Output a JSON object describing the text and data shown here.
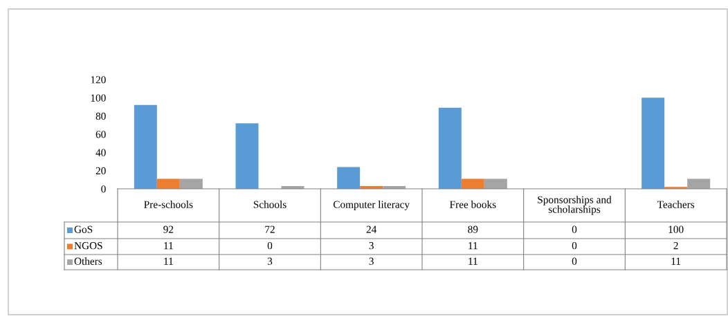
{
  "chart_data": {
    "type": "bar",
    "categories": [
      "Pre-schools",
      "Schools",
      "Computer literacy",
      "Free books",
      "Sponsorships and scholarships",
      "Teachers"
    ],
    "series": [
      {
        "name": "GoS",
        "color": "#5b9bd5",
        "values": [
          92,
          72,
          24,
          89,
          0,
          100
        ]
      },
      {
        "name": "NGOS",
        "color": "#ed7d31",
        "values": [
          11,
          0,
          3,
          11,
          0,
          2
        ]
      },
      {
        "name": "Others",
        "color": "#a5a5a5",
        "values": [
          11,
          3,
          3,
          11,
          0,
          11
        ]
      }
    ],
    "ylim": [
      0,
      120
    ],
    "yticks": [
      0,
      20,
      40,
      60,
      80,
      100,
      120
    ],
    "grid": false,
    "legend": "bottom",
    "data_labels": true
  }
}
